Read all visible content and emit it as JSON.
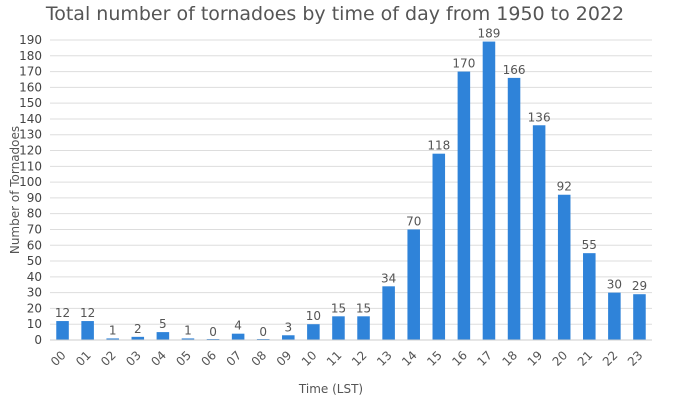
{
  "chart_data": {
    "type": "bar",
    "title": "Total number of tornadoes by time of day from 1950 to 2022",
    "xlabel": "Time (LST)",
    "ylabel": "Number of Tornadoes",
    "ylim": [
      0,
      190
    ],
    "y_ticks": [
      0,
      10,
      20,
      30,
      40,
      50,
      60,
      70,
      80,
      90,
      100,
      110,
      120,
      130,
      140,
      150,
      160,
      170,
      180,
      190
    ],
    "grid": true,
    "bar_color": "#2f83d9",
    "categories": [
      "00",
      "01",
      "02",
      "03",
      "04",
      "05",
      "06",
      "07",
      "08",
      "09",
      "10",
      "11",
      "12",
      "13",
      "14",
      "15",
      "16",
      "17",
      "18",
      "19",
      "20",
      "21",
      "22",
      "23"
    ],
    "values": [
      12,
      12,
      1,
      2,
      5,
      1,
      0,
      4,
      0,
      3,
      10,
      15,
      15,
      34,
      70,
      118,
      170,
      189,
      166,
      136,
      92,
      55,
      30,
      29
    ]
  }
}
